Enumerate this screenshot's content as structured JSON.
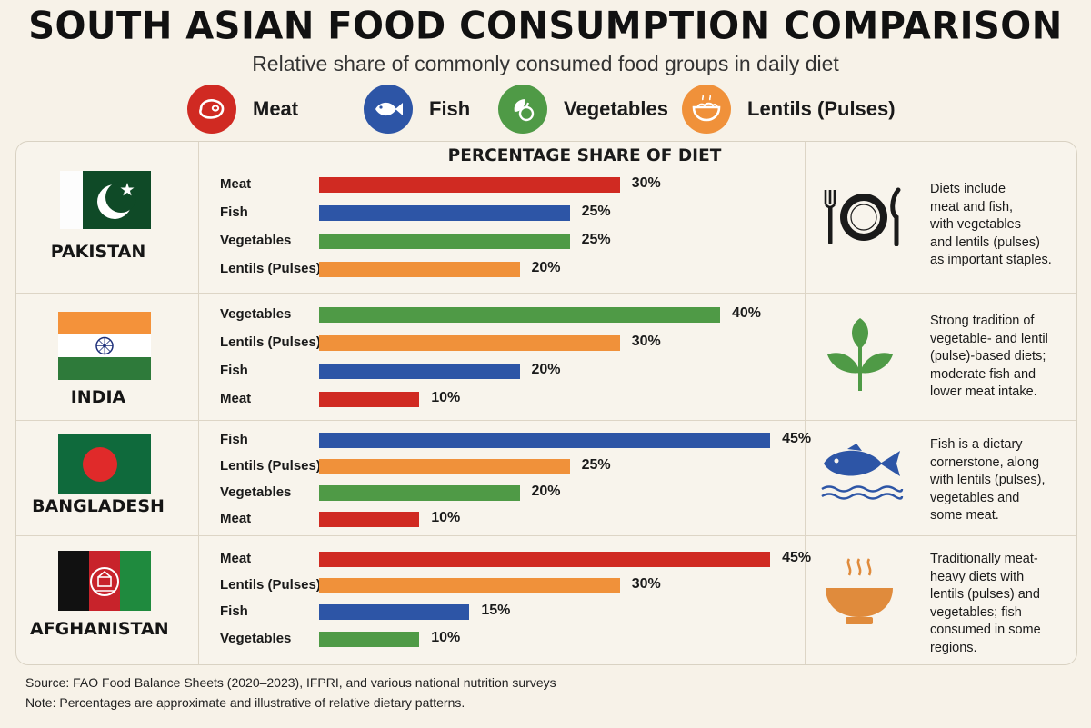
{
  "header": {
    "title": "SOUTH ASIAN FOOD CONSUMPTION COMPARISON",
    "subtitle": "Relative share of commonly consumed food groups in daily diet"
  },
  "legend": [
    {
      "key": "meat",
      "label": "Meat",
      "color": "#d02a22",
      "icon": "meat-icon"
    },
    {
      "key": "fish",
      "label": "Fish",
      "color": "#2d55a6",
      "icon": "fish-icon"
    },
    {
      "key": "vegetables",
      "label": "Vegetables",
      "color": "#4f9a46",
      "icon": "vegetables-icon"
    },
    {
      "key": "lentils",
      "label": "Lentils (Pulses)",
      "color": "#f0913a",
      "icon": "lentils-bowl-icon"
    }
  ],
  "chart_data": {
    "type": "bar",
    "title": "PERCENTAGE SHARE OF DIET",
    "unit": "%",
    "xlim": [
      0,
      45
    ],
    "groups": [
      {
        "country": "PAKISTAN",
        "flag": "pakistan-flag",
        "note": [
          "Diets include",
          "meat and fish,",
          "with vegetables",
          "and lentils (pulses)",
          "as important staples."
        ],
        "note_icon": "plate-cutlery-icon",
        "bars": [
          {
            "label": "Meat",
            "key": "meat",
            "value": 30,
            "value_label": "30%"
          },
          {
            "label": "Fish",
            "key": "fish",
            "value": 25,
            "value_label": "25%"
          },
          {
            "label": "Vegetables",
            "key": "vegetables",
            "value": 25,
            "value_label": "25%"
          },
          {
            "label": "Lentils (Pulses)",
            "key": "lentils",
            "value": 20,
            "value_label": "20%"
          }
        ]
      },
      {
        "country": "INDIA",
        "flag": "india-flag",
        "note": [
          "Strong tradition of",
          "vegetable- and lentil",
          "(pulse)-based diets;",
          "moderate fish and",
          "lower meat intake."
        ],
        "note_icon": "leaf-plant-icon",
        "bars": [
          {
            "label": "Vegetables",
            "key": "vegetables",
            "value": 40,
            "value_label": "40%"
          },
          {
            "label": "Lentils (Pulses)",
            "key": "lentils",
            "value": 30,
            "value_label": "30%"
          },
          {
            "label": "Fish",
            "key": "fish",
            "value": 20,
            "value_label": "20%"
          },
          {
            "label": "Meat",
            "key": "meat",
            "value": 10,
            "value_label": "10%"
          }
        ]
      },
      {
        "country": "BANGLADESH",
        "flag": "bangladesh-flag",
        "note": [
          "Fish is a dietary",
          "cornerstone, along",
          "with lentils (pulses),",
          "vegetables and",
          "some meat."
        ],
        "note_icon": "fish-waves-icon",
        "bars": [
          {
            "label": "Fish",
            "key": "fish",
            "value": 45,
            "value_label": "45%"
          },
          {
            "label": "Lentils (Pulses)",
            "key": "lentils",
            "value": 25,
            "value_label": "25%"
          },
          {
            "label": "Vegetables",
            "key": "vegetables",
            "value": 20,
            "value_label": "20%"
          },
          {
            "label": "Meat",
            "key": "meat",
            "value": 10,
            "value_label": "10%"
          }
        ]
      },
      {
        "country": "AFGHANISTAN",
        "flag": "afghanistan-flag",
        "note": [
          "Traditionally meat-",
          "heavy diets with",
          "lentils (pulses) and",
          "vegetables; fish",
          "consumed in some",
          "regions."
        ],
        "note_icon": "steaming-bowl-icon",
        "bars": [
          {
            "label": "Meat",
            "key": "meat",
            "value": 45,
            "value_label": "45%"
          },
          {
            "label": "Lentils (Pulses)",
            "key": "lentils",
            "value": 30,
            "value_label": "30%"
          },
          {
            "label": "Fish",
            "key": "fish",
            "value": 15,
            "value_label": "15%"
          },
          {
            "label": "Vegetables",
            "key": "vegetables",
            "value": 10,
            "value_label": "10%"
          }
        ]
      }
    ]
  },
  "footer": {
    "source": "Source: FAO Food Balance Sheets (2020–2023), IFPRI, and various national nutrition surveys",
    "note": "Note: Percentages are approximate and illustrative of relative dietary patterns."
  }
}
